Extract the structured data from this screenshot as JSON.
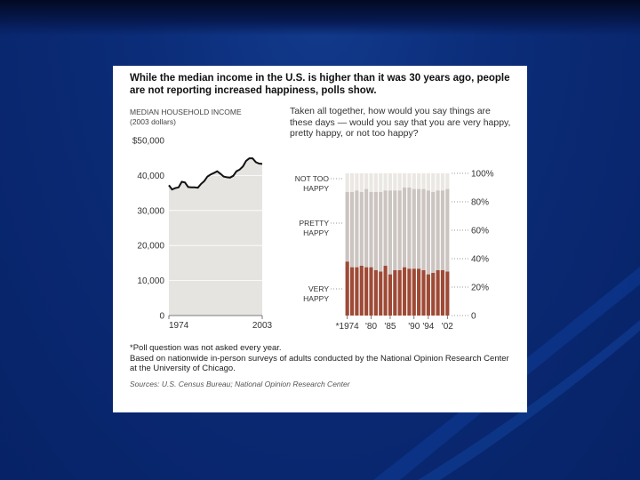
{
  "slide": {
    "headline": "While the median income in the U.S. is higher than it was 30 years ago, people are not reporting increased happiness, polls show.",
    "income_label_line1": "MEDIAN HOUSEHOLD INCOME",
    "income_label_line2": "(2003 dollars)",
    "question": "Taken all together, how would you say things are these days — would you say that you are very happy, pretty happy, or not too happy?",
    "footnote": "*Poll question was not asked every year.",
    "survey_note": "Based on nationwide in-person surveys of adults conducted by the National Opinion Research Center at the University of Chicago.",
    "sources": "Sources: U.S. Census Bureau; National Opinion Research Center"
  },
  "colors": {
    "income_area": "#e6e4e0",
    "income_line": "#111111",
    "very_happy": "#9e4a36",
    "pretty_happy": "#cbc4c0",
    "not_too_happy": "#ebe8e4"
  },
  "chart_data": [
    {
      "type": "area",
      "title": "MEDIAN HOUSEHOLD INCOME",
      "subtitle": "(2003 dollars)",
      "x": [
        1974,
        1975,
        1976,
        1977,
        1978,
        1979,
        1980,
        1981,
        1982,
        1983,
        1984,
        1985,
        1986,
        1987,
        1988,
        1989,
        1990,
        1991,
        1992,
        1993,
        1994,
        1995,
        1996,
        1997,
        1998,
        1999,
        2000,
        2001,
        2002,
        2003
      ],
      "y": [
        37200,
        36000,
        36400,
        36600,
        38200,
        38000,
        36700,
        36600,
        36600,
        36500,
        37600,
        38400,
        39700,
        40300,
        40700,
        41200,
        40500,
        39700,
        39500,
        39400,
        39900,
        41200,
        41700,
        42600,
        44200,
        44900,
        44900,
        43800,
        43400,
        43300
      ],
      "yticks": [
        0,
        10000,
        20000,
        30000,
        40000,
        50000
      ],
      "ytick_labels": [
        "0",
        "10,000",
        "20,000",
        "30,000",
        "40,000",
        "$50,000"
      ],
      "xtick_labels": [
        "1974",
        "2003"
      ],
      "ylim": [
        0,
        50000
      ]
    },
    {
      "type": "bar",
      "stacked": true,
      "categories": [
        "1974",
        "1975",
        "1976",
        "1977",
        "1978",
        "1980",
        "1982",
        "1983",
        "1984",
        "1985",
        "1986",
        "1987",
        "1988",
        "1989",
        "1990",
        "1991",
        "1993",
        "1994",
        "1996",
        "1998",
        "2000",
        "2002"
      ],
      "xtick_labels": [
        "*1974",
        "'80",
        "'85",
        "'90",
        "'94",
        "'02"
      ],
      "yticks": [
        0,
        20,
        40,
        60,
        80,
        100
      ],
      "ytick_labels": [
        "0",
        "20%",
        "40%",
        "60%",
        "80%",
        "100%"
      ],
      "ylim": [
        0,
        100
      ],
      "series": [
        {
          "name": "VERY HAPPY",
          "values": [
            38,
            34,
            34,
            35,
            34,
            34,
            32,
            31,
            35,
            29,
            32,
            32,
            34,
            33,
            33,
            33,
            32,
            29,
            30,
            32,
            32,
            31
          ]
        },
        {
          "name": "PRETTY HAPPY",
          "values": [
            49,
            53,
            54,
            52,
            55,
            53,
            55,
            56,
            53,
            59,
            56,
            56,
            56,
            57,
            56,
            56,
            57,
            59,
            57,
            56,
            56,
            58
          ]
        },
        {
          "name": "NOT TOO HAPPY",
          "values": [
            13,
            13,
            12,
            13,
            11,
            13,
            13,
            13,
            12,
            12,
            12,
            12,
            10,
            10,
            11,
            11,
            11,
            12,
            13,
            12,
            12,
            11
          ]
        }
      ],
      "series_label_lines": [
        [
          "VERY",
          "HAPPY"
        ],
        [
          "PRETTY",
          "HAPPY"
        ],
        [
          "NOT TOO",
          "HAPPY"
        ]
      ]
    }
  ]
}
